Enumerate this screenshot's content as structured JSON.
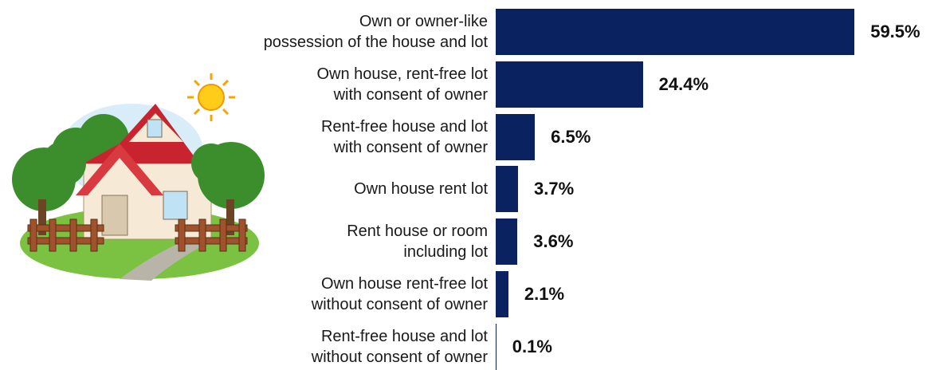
{
  "chart_data": {
    "type": "bar",
    "orientation": "horizontal",
    "categories": [
      "Own or owner-like\npossession of the house and lot",
      "Own house, rent-free lot\nwith consent of owner",
      "Rent-free house and lot\nwith consent of owner",
      "Own house rent lot",
      "Rent house or room\nincluding lot",
      "Own house rent-free lot\nwithout consent of owner",
      "Rent-free house and lot\nwithout consent of owner"
    ],
    "values": [
      59.5,
      24.4,
      6.5,
      3.7,
      3.6,
      2.1,
      0.1
    ],
    "value_labels": [
      "59.5%",
      "24.4%",
      "6.5%",
      "3.7%",
      "3.6%",
      "2.1%",
      "0.1%"
    ],
    "color": "#0b2260",
    "xlim": [
      0,
      60
    ]
  }
}
